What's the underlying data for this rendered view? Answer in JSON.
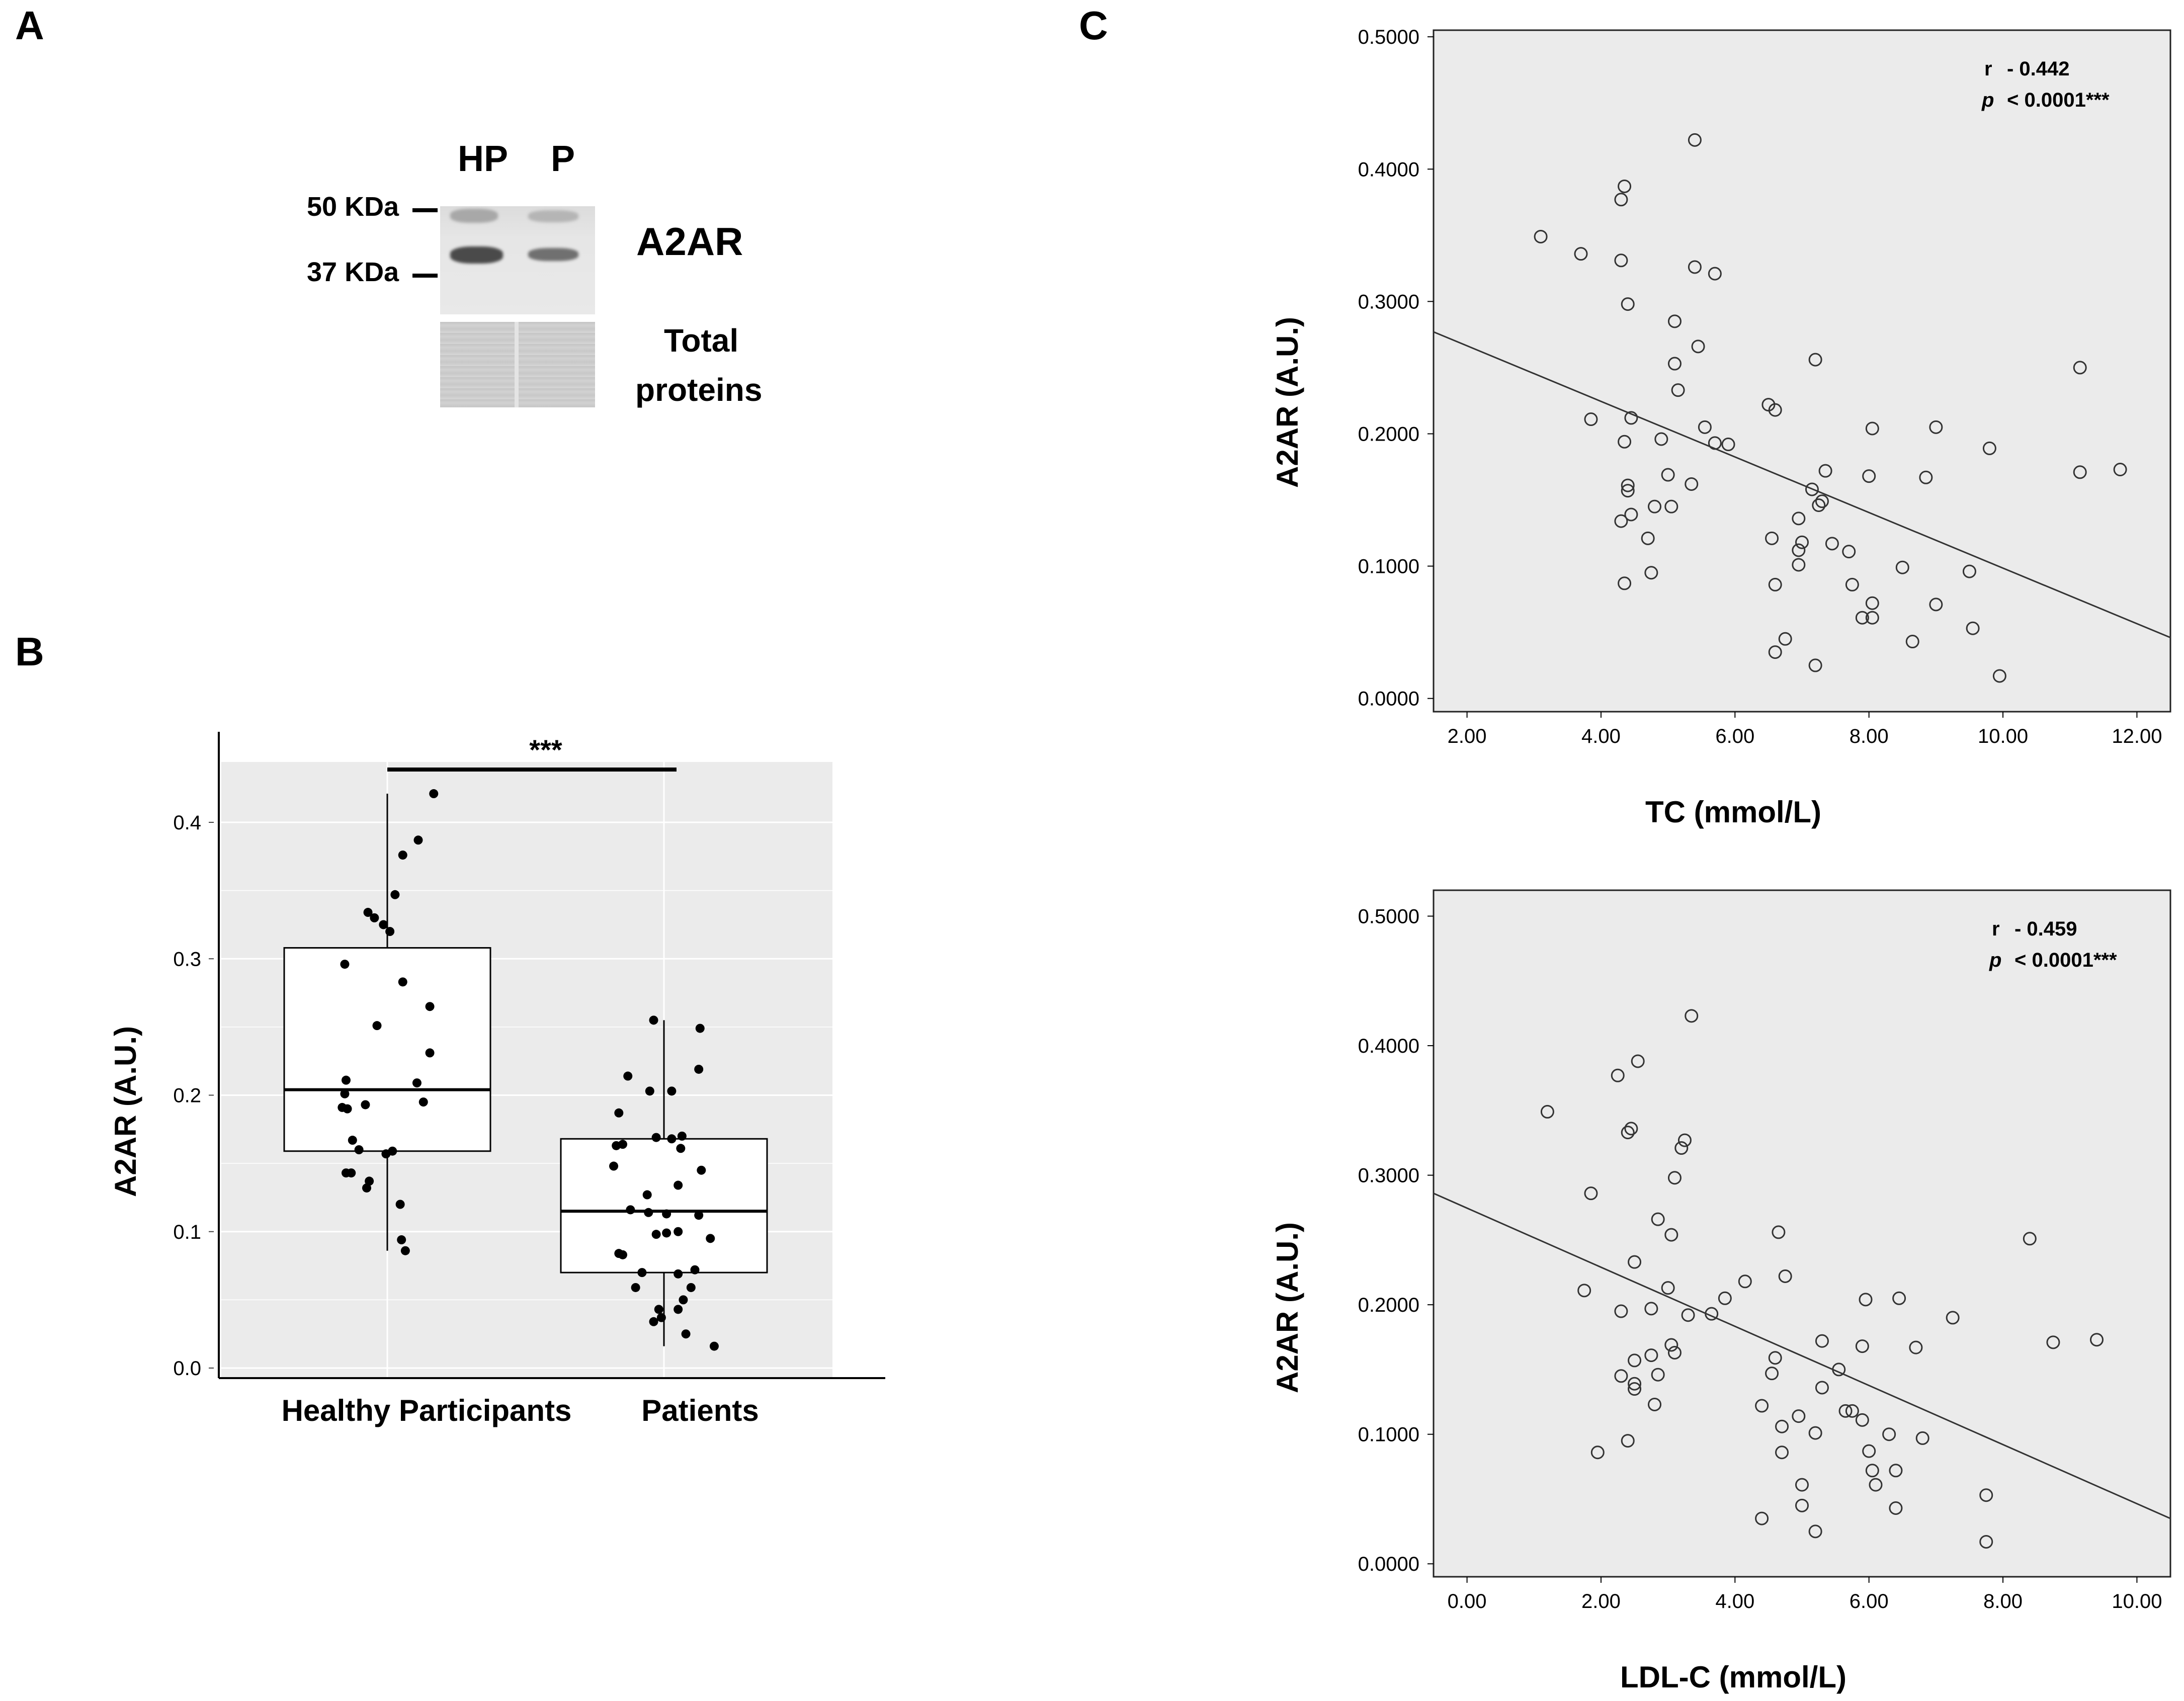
{
  "panels": {
    "a": "A",
    "b": "B",
    "c": "C"
  },
  "blot": {
    "lanes": [
      "HP",
      "P"
    ],
    "markers": [
      "50 KDa",
      "37 KDa"
    ],
    "target_label": "A2AR",
    "loading_label_line1": "Total",
    "loading_label_line2": "proteins"
  },
  "chart_data": [
    {
      "type": "box",
      "panel": "B",
      "categories": [
        "Healthy Participants",
        "Patients"
      ],
      "ylabel": "A2AR (A.U.)",
      "ylim": [
        0,
        0.45
      ],
      "yticks": [
        "0.0",
        "0.1",
        "0.2",
        "0.3",
        "0.4"
      ],
      "significance": "***",
      "background": "#ebebeb",
      "boxes": [
        {
          "name": "Healthy Participants",
          "q1": 0.159,
          "median": 0.204,
          "q3": 0.308,
          "whisker_low": 0.086,
          "whisker_high": 0.421
        },
        {
          "name": "Patients",
          "q1": 0.07,
          "median": 0.115,
          "q3": 0.168,
          "whisker_low": 0.016,
          "whisker_high": 0.255
        }
      ],
      "points": [
        [
          [
            0.36,
            0.421
          ],
          [
            0.24,
            0.387
          ],
          [
            0.12,
            0.376
          ],
          [
            0.06,
            0.347
          ],
          [
            -0.15,
            0.334
          ],
          [
            -0.1,
            0.33
          ],
          [
            -0.03,
            0.325
          ],
          [
            0.02,
            0.32
          ],
          [
            -0.33,
            0.296
          ],
          [
            0.12,
            0.283
          ],
          [
            0.33,
            0.265
          ],
          [
            -0.08,
            0.251
          ],
          [
            0.33,
            0.231
          ],
          [
            -0.32,
            0.211
          ],
          [
            0.23,
            0.209
          ],
          [
            -0.33,
            0.201
          ],
          [
            0.28,
            0.195
          ],
          [
            -0.17,
            0.193
          ],
          [
            -0.35,
            0.191
          ],
          [
            -0.31,
            0.19
          ],
          [
            -0.27,
            0.167
          ],
          [
            -0.22,
            0.16
          ],
          [
            0.04,
            0.159
          ],
          [
            -0.01,
            0.157
          ],
          [
            -0.32,
            0.143
          ],
          [
            -0.28,
            0.143
          ],
          [
            -0.14,
            0.137
          ],
          [
            -0.16,
            0.132
          ],
          [
            0.1,
            0.12
          ],
          [
            0.11,
            0.094
          ],
          [
            0.14,
            0.086
          ]
        ],
        [
          [
            -0.08,
            0.255
          ],
          [
            0.28,
            0.249
          ],
          [
            0.27,
            0.219
          ],
          [
            -0.28,
            0.214
          ],
          [
            -0.11,
            0.203
          ],
          [
            0.06,
            0.203
          ],
          [
            -0.35,
            0.187
          ],
          [
            0.14,
            0.17
          ],
          [
            -0.06,
            0.169
          ],
          [
            0.06,
            0.168
          ],
          [
            -0.32,
            0.164
          ],
          [
            -0.37,
            0.163
          ],
          [
            0.13,
            0.161
          ],
          [
            0.29,
            0.145
          ],
          [
            -0.39,
            0.148
          ],
          [
            0.11,
            0.134
          ],
          [
            -0.13,
            0.127
          ],
          [
            -0.26,
            0.116
          ],
          [
            -0.12,
            0.114
          ],
          [
            0.02,
            0.113
          ],
          [
            0.27,
            0.112
          ],
          [
            0.11,
            0.1
          ],
          [
            0.02,
            0.099
          ],
          [
            -0.06,
            0.098
          ],
          [
            0.36,
            0.095
          ],
          [
            -0.35,
            0.084
          ],
          [
            -0.32,
            0.083
          ],
          [
            0.24,
            0.072
          ],
          [
            -0.17,
            0.07
          ],
          [
            0.11,
            0.069
          ],
          [
            -0.22,
            0.059
          ],
          [
            0.21,
            0.059
          ],
          [
            0.15,
            0.05
          ],
          [
            0.11,
            0.043
          ],
          [
            -0.04,
            0.043
          ],
          [
            -0.02,
            0.037
          ],
          [
            -0.08,
            0.034
          ],
          [
            0.17,
            0.025
          ],
          [
            0.39,
            0.016
          ]
        ]
      ]
    },
    {
      "type": "scatter",
      "panel": "C-top",
      "xlabel": "TC (mmol/L)",
      "ylabel": "A2AR (A.U.)",
      "xlim": [
        1.5,
        12.5
      ],
      "ylim": [
        -0.01,
        0.505
      ],
      "xticks": [
        "2.00",
        "4.00",
        "6.00",
        "8.00",
        "10.00",
        "12.00"
      ],
      "yticks": [
        "0.0000",
        "0.1000",
        "0.2000",
        "0.3000",
        "0.4000",
        "0.5000"
      ],
      "annotation": {
        "r_symbol": "r",
        "r_value": "- 0.442",
        "p_symbol": "p",
        "p_value": "< 0.0001***"
      },
      "fit_line": [
        [
          1.5,
          0.277
        ],
        [
          12.5,
          0.046
        ]
      ],
      "background": "#ebebeb",
      "points": [
        [
          3.1,
          0.349
        ],
        [
          3.7,
          0.336
        ],
        [
          3.85,
          0.211
        ],
        [
          4.3,
          0.331
        ],
        [
          4.3,
          0.377
        ],
        [
          4.35,
          0.387
        ],
        [
          4.4,
          0.298
        ],
        [
          4.35,
          0.194
        ],
        [
          4.45,
          0.212
        ],
        [
          4.3,
          0.134
        ],
        [
          4.4,
          0.157
        ],
        [
          4.4,
          0.161
        ],
        [
          4.45,
          0.139
        ],
        [
          4.35,
          0.087
        ],
        [
          4.7,
          0.121
        ],
        [
          4.75,
          0.095
        ],
        [
          4.8,
          0.145
        ],
        [
          4.9,
          0.196
        ],
        [
          5.0,
          0.169
        ],
        [
          5.05,
          0.145
        ],
        [
          5.1,
          0.285
        ],
        [
          5.1,
          0.253
        ],
        [
          5.15,
          0.233
        ],
        [
          5.35,
          0.162
        ],
        [
          5.4,
          0.422
        ],
        [
          5.4,
          0.326
        ],
        [
          5.45,
          0.266
        ],
        [
          5.55,
          0.205
        ],
        [
          5.7,
          0.321
        ],
        [
          5.7,
          0.193
        ],
        [
          5.9,
          0.192
        ],
        [
          6.5,
          0.222
        ],
        [
          6.6,
          0.218
        ],
        [
          6.55,
          0.121
        ],
        [
          6.6,
          0.086
        ],
        [
          6.6,
          0.035
        ],
        [
          6.75,
          0.045
        ],
        [
          6.95,
          0.136
        ],
        [
          7.0,
          0.118
        ],
        [
          6.95,
          0.112
        ],
        [
          6.95,
          0.101
        ],
        [
          7.15,
          0.158
        ],
        [
          7.25,
          0.146
        ],
        [
          7.3,
          0.149
        ],
        [
          7.35,
          0.172
        ],
        [
          7.45,
          0.117
        ],
        [
          7.7,
          0.111
        ],
        [
          7.75,
          0.086
        ],
        [
          7.2,
          0.256
        ],
        [
          7.2,
          0.025
        ],
        [
          7.9,
          0.061
        ],
        [
          8.0,
          0.168
        ],
        [
          8.05,
          0.204
        ],
        [
          8.05,
          0.072
        ],
        [
          8.05,
          0.061
        ],
        [
          8.5,
          0.099
        ],
        [
          8.65,
          0.043
        ],
        [
          8.85,
          0.167
        ],
        [
          9.0,
          0.205
        ],
        [
          9.0,
          0.071
        ],
        [
          9.5,
          0.096
        ],
        [
          9.55,
          0.053
        ],
        [
          9.8,
          0.189
        ],
        [
          9.95,
          0.017
        ],
        [
          11.15,
          0.25
        ],
        [
          11.15,
          0.171
        ],
        [
          11.75,
          0.173
        ]
      ]
    },
    {
      "type": "scatter",
      "panel": "C-bottom",
      "xlabel": "LDL-C (mmol/L)",
      "ylabel": "A2AR (A.U.)",
      "xlim": [
        -0.5,
        10.5
      ],
      "ylim": [
        -0.01,
        0.52
      ],
      "xticks": [
        "0.00",
        "2.00",
        "4.00",
        "6.00",
        "8.00",
        "10.00"
      ],
      "yticks": [
        "0.0000",
        "0.1000",
        "0.2000",
        "0.3000",
        "0.4000",
        "0.5000"
      ],
      "annotation": {
        "r_symbol": "r",
        "r_value": "- 0.459",
        "p_symbol": "p",
        "p_value": "< 0.0001***"
      },
      "fit_line": [
        [
          -0.5,
          0.286
        ],
        [
          10.5,
          0.035
        ]
      ],
      "background": "#ebebeb",
      "points": [
        [
          1.2,
          0.349
        ],
        [
          1.75,
          0.211
        ],
        [
          1.85,
          0.286
        ],
        [
          1.95,
          0.086
        ],
        [
          2.25,
          0.377
        ],
        [
          2.3,
          0.195
        ],
        [
          2.3,
          0.145
        ],
        [
          2.4,
          0.333
        ],
        [
          2.45,
          0.336
        ],
        [
          2.4,
          0.095
        ],
        [
          2.5,
          0.233
        ],
        [
          2.5,
          0.157
        ],
        [
          2.5,
          0.139
        ],
        [
          2.5,
          0.135
        ],
        [
          2.55,
          0.388
        ],
        [
          2.75,
          0.161
        ],
        [
          2.75,
          0.197
        ],
        [
          2.8,
          0.123
        ],
        [
          2.85,
          0.146
        ],
        [
          2.85,
          0.266
        ],
        [
          3.0,
          0.213
        ],
        [
          3.05,
          0.169
        ],
        [
          3.05,
          0.254
        ],
        [
          3.1,
          0.298
        ],
        [
          3.1,
          0.163
        ],
        [
          3.2,
          0.321
        ],
        [
          3.25,
          0.327
        ],
        [
          3.3,
          0.192
        ],
        [
          3.35,
          0.423
        ],
        [
          3.65,
          0.193
        ],
        [
          3.85,
          0.205
        ],
        [
          4.15,
          0.218
        ],
        [
          4.4,
          0.122
        ],
        [
          4.4,
          0.035
        ],
        [
          4.55,
          0.147
        ],
        [
          4.6,
          0.159
        ],
        [
          4.65,
          0.256
        ],
        [
          4.7,
          0.106
        ],
        [
          4.7,
          0.086
        ],
        [
          4.75,
          0.222
        ],
        [
          4.95,
          0.114
        ],
        [
          5.0,
          0.061
        ],
        [
          5.0,
          0.045
        ],
        [
          5.2,
          0.101
        ],
        [
          5.2,
          0.025
        ],
        [
          5.3,
          0.136
        ],
        [
          5.3,
          0.172
        ],
        [
          5.55,
          0.15
        ],
        [
          5.65,
          0.118
        ],
        [
          5.75,
          0.118
        ],
        [
          5.9,
          0.168
        ],
        [
          5.9,
          0.111
        ],
        [
          5.95,
          0.204
        ],
        [
          6.0,
          0.087
        ],
        [
          6.05,
          0.072
        ],
        [
          6.1,
          0.061
        ],
        [
          6.3,
          0.1
        ],
        [
          6.4,
          0.072
        ],
        [
          6.4,
          0.043
        ],
        [
          6.45,
          0.205
        ],
        [
          6.7,
          0.167
        ],
        [
          6.8,
          0.097
        ],
        [
          7.25,
          0.19
        ],
        [
          7.75,
          0.017
        ],
        [
          7.75,
          0.053
        ],
        [
          8.4,
          0.251
        ],
        [
          8.75,
          0.171
        ],
        [
          9.4,
          0.173
        ]
      ]
    }
  ]
}
